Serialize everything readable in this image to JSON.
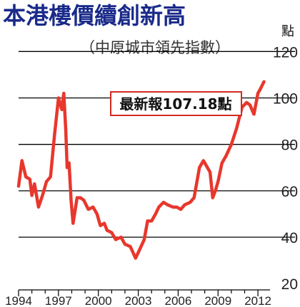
{
  "chart_data": {
    "type": "line",
    "title": "本港樓價續創新高",
    "subtitle": "（中原城市領先指數）",
    "unit_label": "點",
    "annotation": "最新報107.18點",
    "ylim": [
      17,
      125
    ],
    "y_ticks": [
      "120",
      "100",
      "80",
      "60",
      "40",
      "20"
    ],
    "y_tick_values": [
      120,
      100,
      80,
      60,
      40,
      20
    ],
    "xlim": [
      1994,
      2012.8
    ],
    "x_ticks": [
      "1994",
      "1997",
      "2000",
      "2003",
      "2006",
      "2009",
      "2012"
    ],
    "x_tick_values": [
      1994,
      1997,
      2000,
      2003,
      2006,
      2009,
      2012
    ],
    "grid": "horizontal",
    "colors": {
      "title": "#1a2a8a",
      "line": "#e8372c",
      "grid": "#000000",
      "annotation_border": "#d42a22"
    },
    "series": [
      {
        "x": [
          1994.0,
          1994.25,
          1994.55,
          1994.85,
          1995.0,
          1995.2,
          1995.5,
          1995.8,
          1996.1,
          1996.4,
          1996.7,
          1997.0,
          1997.25,
          1997.4,
          1997.55,
          1997.65,
          1997.8,
          1997.95,
          1998.1,
          1998.4,
          1998.65,
          1998.9,
          1999.25,
          1999.6,
          1999.9,
          2000.15,
          2000.45,
          2000.65,
          2001.0,
          2001.3,
          2001.7,
          2002.0,
          2002.4,
          2002.8,
          2003.05,
          2003.45,
          2003.7,
          2004.0,
          2004.3,
          2004.55,
          2004.9,
          2005.2,
          2005.6,
          2005.9,
          2006.2,
          2006.5,
          2006.9,
          2007.2,
          2007.6,
          2007.9,
          2008.1,
          2008.4,
          2008.6,
          2008.8,
          2009.0,
          2009.3,
          2009.6,
          2010.0,
          2010.4,
          2010.8,
          2011.15,
          2011.4,
          2011.7,
          2012.0,
          2012.2,
          2012.45
        ],
        "y": [
          62,
          73,
          66,
          65,
          58,
          63,
          53,
          58,
          64,
          66,
          84,
          100,
          95,
          102,
          86,
          70,
          72,
          56,
          46,
          57,
          57,
          56,
          52,
          53,
          50,
          45,
          46,
          43,
          42,
          39,
          40,
          37,
          36,
          31,
          34,
          39,
          47,
          47,
          50,
          53,
          55,
          54,
          53,
          53,
          52,
          54,
          55,
          57,
          70,
          73,
          71,
          68,
          57,
          60,
          64,
          72,
          75,
          80,
          87,
          96,
          98,
          97,
          93,
          102,
          104,
          107
        ]
      }
    ]
  }
}
